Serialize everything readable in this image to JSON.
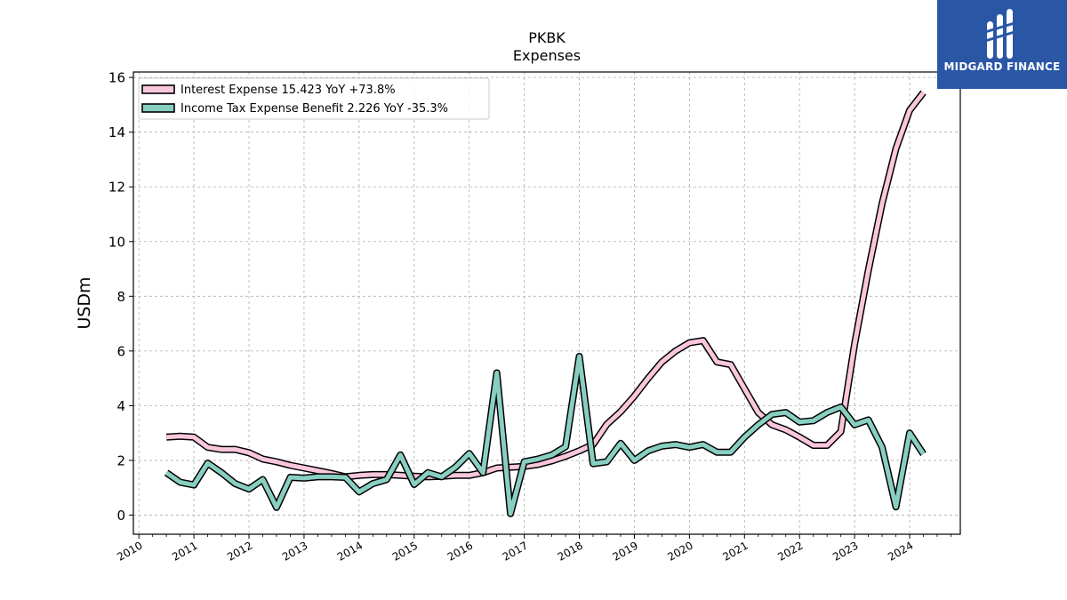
{
  "chart_data": {
    "type": "line",
    "title": "PKBK",
    "subtitle": "Expenses",
    "xlabel": "",
    "ylabel": "USDm",
    "xlim": [
      2009.9,
      2024.92
    ],
    "ylim": [
      -0.7,
      16.2
    ],
    "yticks": [
      0,
      2,
      4,
      6,
      8,
      10,
      12,
      14,
      16
    ],
    "xticks": [
      "2010",
      "2011",
      "2012",
      "2013",
      "2014",
      "2015",
      "2016",
      "2017",
      "2018",
      "2019",
      "2020",
      "2021",
      "2022",
      "2023",
      "2024"
    ],
    "grid": true,
    "legend_position": "top-left",
    "series": [
      {
        "name": "Interest Expense  15.423 YoY +73.8%",
        "color": "#f9c6dc",
        "x": [
          2010.5,
          2010.75,
          2011.0,
          2011.25,
          2011.5,
          2011.75,
          2012.0,
          2012.25,
          2012.5,
          2012.75,
          2013.0,
          2013.25,
          2013.5,
          2013.75,
          2014.0,
          2014.25,
          2014.5,
          2014.75,
          2015.0,
          2015.25,
          2015.5,
          2015.75,
          2016.0,
          2016.25,
          2016.5,
          2016.75,
          2017.0,
          2017.25,
          2017.5,
          2017.75,
          2018.0,
          2018.25,
          2018.5,
          2018.75,
          2019.0,
          2019.25,
          2019.5,
          2019.75,
          2020.0,
          2020.25,
          2020.5,
          2020.75,
          2021.0,
          2021.25,
          2021.5,
          2021.75,
          2022.0,
          2022.25,
          2022.5,
          2022.75,
          2023.0,
          2023.25,
          2023.5,
          2023.75,
          2024.0,
          2024.25
        ],
        "values": [
          2.85,
          2.88,
          2.85,
          2.48,
          2.4,
          2.4,
          2.28,
          2.05,
          1.95,
          1.82,
          1.72,
          1.62,
          1.52,
          1.4,
          1.45,
          1.48,
          1.48,
          1.45,
          1.42,
          1.4,
          1.42,
          1.45,
          1.45,
          1.55,
          1.72,
          1.75,
          1.78,
          1.85,
          1.98,
          2.15,
          2.35,
          2.58,
          3.32,
          3.78,
          4.35,
          5.0,
          5.6,
          6.0,
          6.3,
          6.38,
          5.6,
          5.5,
          4.62,
          3.75,
          3.3,
          3.12,
          2.85,
          2.55,
          2.55,
          3.05,
          6.25,
          8.95,
          11.4,
          13.4,
          14.8,
          15.45
        ]
      },
      {
        "name": "Income Tax Expense Benefit  2.226 YoY -35.3%",
        "color": "#88cfc2",
        "x": [
          2010.5,
          2010.75,
          2011.0,
          2011.25,
          2011.5,
          2011.75,
          2012.0,
          2012.25,
          2012.5,
          2012.75,
          2013.0,
          2013.25,
          2013.5,
          2013.75,
          2014.0,
          2014.25,
          2014.5,
          2014.75,
          2015.0,
          2015.25,
          2015.5,
          2015.75,
          2016.0,
          2016.25,
          2016.5,
          2016.75,
          2017.0,
          2017.25,
          2017.5,
          2017.75,
          2018.0,
          2018.25,
          2018.5,
          2018.75,
          2019.0,
          2019.25,
          2019.5,
          2019.75,
          2020.0,
          2020.25,
          2020.5,
          2020.75,
          2021.0,
          2021.25,
          2021.5,
          2021.75,
          2022.0,
          2022.25,
          2022.5,
          2022.75,
          2023.0,
          2023.25,
          2023.5,
          2023.75,
          2024.0,
          2024.25
        ],
        "values": [
          1.55,
          1.2,
          1.1,
          1.9,
          1.55,
          1.15,
          0.95,
          1.3,
          0.28,
          1.38,
          1.35,
          1.4,
          1.4,
          1.38,
          0.85,
          1.15,
          1.3,
          2.2,
          1.12,
          1.55,
          1.4,
          1.75,
          2.25,
          1.55,
          5.2,
          0.05,
          1.95,
          2.05,
          2.2,
          2.5,
          5.8,
          1.88,
          1.95,
          2.62,
          2.0,
          2.35,
          2.52,
          2.58,
          2.48,
          2.58,
          2.3,
          2.3,
          2.85,
          3.3,
          3.68,
          3.75,
          3.4,
          3.45,
          3.75,
          3.95,
          3.3,
          3.48,
          2.48,
          0.3,
          3.0,
          2.23
        ]
      }
    ]
  },
  "logo": {
    "text": "MIDGARD FINANCE",
    "icon": "midgard-logo-icon",
    "background": "#2a56a6"
  }
}
